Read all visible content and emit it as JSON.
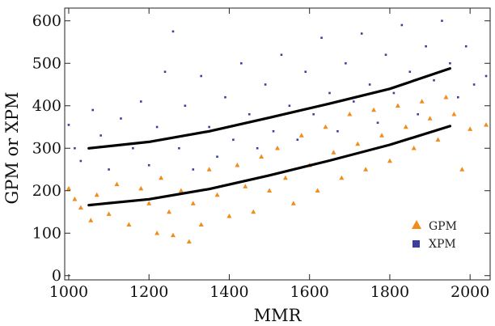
{
  "chart_data": {
    "type": "scatter",
    "xlabel": "MMR",
    "ylabel": "GPM or XPM",
    "xlim": [
      990,
      2050
    ],
    "ylim": [
      -10,
      630
    ],
    "x_ticks": [
      "1000",
      "1200",
      "1400",
      "1600",
      "1800",
      "2000"
    ],
    "y_ticks": [
      "0",
      "100",
      "200",
      "300",
      "400",
      "500",
      "600"
    ],
    "legend_position": "bottom-right",
    "series": [
      {
        "name": "GPM",
        "marker": "triangle",
        "color": "#f28c1a",
        "fit_curve": {
          "x": [
            1050,
            1200,
            1350,
            1500,
            1650,
            1800,
            1950
          ],
          "y": [
            166,
            180,
            204,
            236,
            271,
            308,
            352
          ]
        },
        "points": [
          [
            1000,
            205
          ],
          [
            1015,
            180
          ],
          [
            1030,
            160
          ],
          [
            1055,
            130
          ],
          [
            1070,
            190
          ],
          [
            1100,
            145
          ],
          [
            1120,
            215
          ],
          [
            1150,
            120
          ],
          [
            1180,
            205
          ],
          [
            1200,
            170
          ],
          [
            1220,
            100
          ],
          [
            1230,
            230
          ],
          [
            1250,
            150
          ],
          [
            1260,
            95
          ],
          [
            1280,
            200
          ],
          [
            1300,
            80
          ],
          [
            1310,
            170
          ],
          [
            1330,
            120
          ],
          [
            1350,
            250
          ],
          [
            1370,
            190
          ],
          [
            1400,
            140
          ],
          [
            1420,
            260
          ],
          [
            1440,
            210
          ],
          [
            1460,
            150
          ],
          [
            1480,
            280
          ],
          [
            1500,
            200
          ],
          [
            1520,
            300
          ],
          [
            1540,
            230
          ],
          [
            1560,
            170
          ],
          [
            1580,
            330
          ],
          [
            1600,
            260
          ],
          [
            1620,
            200
          ],
          [
            1640,
            350
          ],
          [
            1660,
            290
          ],
          [
            1680,
            230
          ],
          [
            1700,
            380
          ],
          [
            1720,
            310
          ],
          [
            1740,
            250
          ],
          [
            1760,
            390
          ],
          [
            1780,
            330
          ],
          [
            1800,
            270
          ],
          [
            1820,
            400
          ],
          [
            1840,
            350
          ],
          [
            1860,
            300
          ],
          [
            1880,
            410
          ],
          [
            1900,
            370
          ],
          [
            1920,
            320
          ],
          [
            1940,
            420
          ],
          [
            1960,
            380
          ],
          [
            1980,
            250
          ],
          [
            2000,
            345
          ],
          [
            2040,
            355
          ]
        ]
      },
      {
        "name": "XPM",
        "marker": "square",
        "color": "#3d3d9e",
        "fit_curve": {
          "x": [
            1050,
            1200,
            1350,
            1500,
            1650,
            1800,
            1950
          ],
          "y": [
            300,
            315,
            340,
            372,
            405,
            440,
            488
          ]
        },
        "points": [
          [
            1000,
            355
          ],
          [
            1015,
            300
          ],
          [
            1030,
            270
          ],
          [
            1060,
            390
          ],
          [
            1080,
            330
          ],
          [
            1100,
            250
          ],
          [
            1130,
            370
          ],
          [
            1160,
            300
          ],
          [
            1180,
            410
          ],
          [
            1200,
            260
          ],
          [
            1220,
            350
          ],
          [
            1240,
            480
          ],
          [
            1260,
            575
          ],
          [
            1275,
            300
          ],
          [
            1290,
            400
          ],
          [
            1310,
            250
          ],
          [
            1330,
            470
          ],
          [
            1350,
            350
          ],
          [
            1370,
            280
          ],
          [
            1390,
            420
          ],
          [
            1410,
            320
          ],
          [
            1430,
            500
          ],
          [
            1450,
            380
          ],
          [
            1470,
            300
          ],
          [
            1490,
            450
          ],
          [
            1510,
            340
          ],
          [
            1530,
            520
          ],
          [
            1550,
            400
          ],
          [
            1570,
            320
          ],
          [
            1590,
            480
          ],
          [
            1610,
            380
          ],
          [
            1630,
            560
          ],
          [
            1650,
            430
          ],
          [
            1670,
            340
          ],
          [
            1690,
            500
          ],
          [
            1710,
            410
          ],
          [
            1730,
            570
          ],
          [
            1750,
            450
          ],
          [
            1770,
            360
          ],
          [
            1790,
            520
          ],
          [
            1810,
            430
          ],
          [
            1830,
            590
          ],
          [
            1850,
            480
          ],
          [
            1870,
            380
          ],
          [
            1890,
            540
          ],
          [
            1910,
            460
          ],
          [
            1930,
            600
          ],
          [
            1950,
            500
          ],
          [
            1970,
            420
          ],
          [
            1990,
            540
          ],
          [
            2010,
            450
          ],
          [
            2040,
            470
          ]
        ]
      }
    ]
  }
}
